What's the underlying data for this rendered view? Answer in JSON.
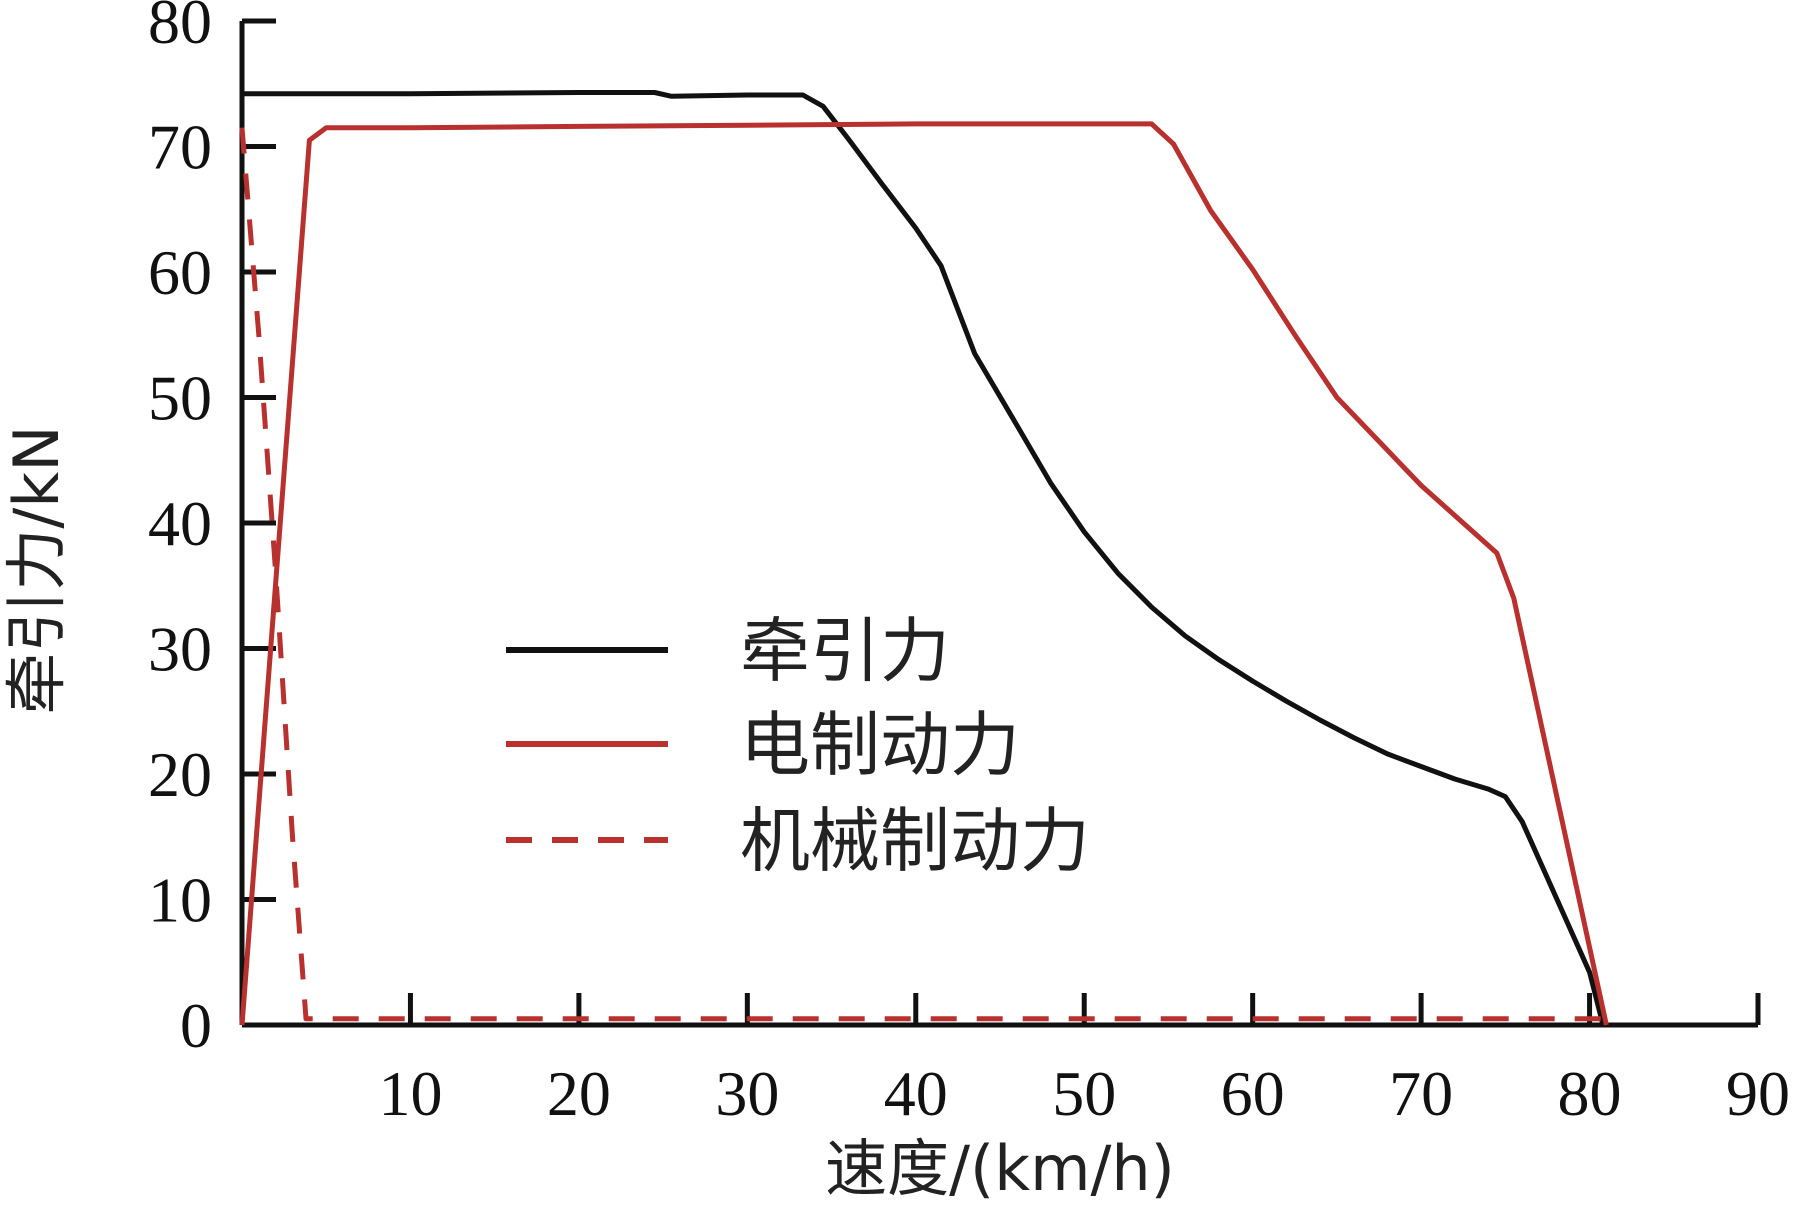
{
  "chart_data": {
    "type": "line",
    "xlabel": "速度/(km/h)",
    "ylabel": "牵引力/kN",
    "xlim": [
      0,
      90
    ],
    "ylim": [
      0,
      80
    ],
    "xticks": [
      10,
      20,
      30,
      40,
      50,
      60,
      70,
      80,
      90
    ],
    "yticks": [
      0,
      10,
      20,
      30,
      40,
      50,
      60,
      70,
      80
    ],
    "grid": false,
    "legend_position": "center",
    "series": [
      {
        "name": "牵引力",
        "color": "#111111",
        "style": "solid",
        "x": [
          0,
          10,
          20,
          24.5,
          25.5,
          30,
          33.3,
          34.5,
          36,
          38,
          40,
          41.5,
          43.5,
          46,
          48,
          50,
          52,
          54,
          56,
          58,
          60,
          62,
          64,
          66,
          68,
          70,
          72,
          74,
          75,
          76,
          78,
          80,
          80.8
        ],
        "y": [
          74.2,
          74.2,
          74.3,
          74.3,
          74.0,
          74.1,
          74.1,
          73.2,
          70.6,
          67.0,
          63.5,
          60.5,
          53.5,
          47.8,
          43.2,
          39.3,
          36.0,
          33.3,
          31.0,
          29.1,
          27.4,
          25.8,
          24.3,
          22.9,
          21.6,
          20.6,
          19.6,
          18.8,
          18.2,
          16.2,
          10.2,
          4.2,
          0
        ]
      },
      {
        "name": "电制动力",
        "color": "#b8312f",
        "style": "solid",
        "x": [
          0,
          4,
          5,
          10,
          20,
          30,
          40,
          50,
          54,
          55.3,
          57.5,
          60,
          62.5,
          65,
          67.5,
          70,
          72.5,
          74.5,
          75.5,
          81
        ],
        "y": [
          0,
          70.5,
          71.5,
          71.5,
          71.6,
          71.7,
          71.8,
          71.8,
          71.8,
          70.2,
          64.9,
          60.2,
          55.0,
          50.0,
          46.5,
          43.0,
          40.0,
          37.6,
          34.0,
          0
        ]
      },
      {
        "name": "机械制动力",
        "color": "#b8312f",
        "style": "dashed",
        "x": [
          0,
          1,
          2,
          3,
          3.8,
          10,
          20,
          30,
          40,
          50,
          60,
          70,
          80,
          81
        ],
        "y": [
          71.5,
          55.0,
          36.0,
          15.0,
          0.5,
          0.5,
          0.5,
          0.5,
          0.5,
          0.5,
          0.5,
          0.5,
          0.5,
          0.5
        ]
      }
    ]
  }
}
